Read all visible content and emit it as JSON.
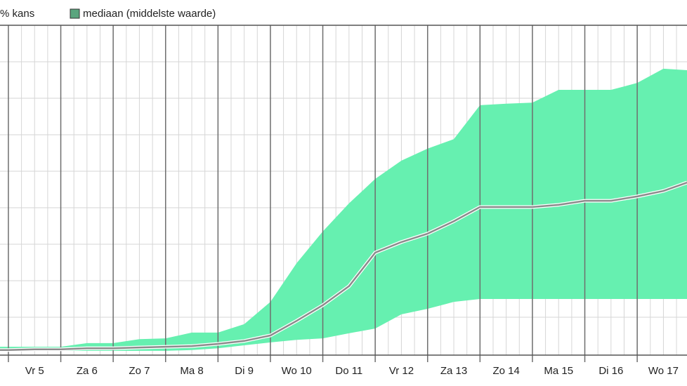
{
  "chart_data": {
    "type": "area",
    "x": [
      4.84,
      5,
      5.5,
      6,
      6.5,
      7,
      7.5,
      8,
      8.5,
      9,
      9.5,
      10,
      10.5,
      11,
      11.5,
      12,
      12.5,
      13,
      13.5,
      14,
      14.5,
      15,
      15.5,
      16,
      16.5,
      17,
      17.5,
      17.95
    ],
    "categories": [
      "Vr 5",
      "Za 6",
      "Zo 7",
      "Ma 8",
      "Di 9",
      "Wo 10",
      "Do 11",
      "Vr 12",
      "Za 13",
      "Zo 14",
      "Ma 15",
      "Di 16",
      "Wo 17"
    ],
    "xlim": [
      4.84,
      17.95
    ],
    "xticks": [
      5,
      6,
      7,
      8,
      9,
      10,
      11,
      12,
      13,
      14,
      15,
      16,
      17
    ],
    "ylim": [
      0,
      9
    ],
    "yticks": [
      1,
      2,
      3,
      4,
      5,
      6,
      7,
      8
    ],
    "grid": true,
    "series": [
      {
        "name": "% kans",
        "color": "#66f0b0",
        "upper": [
          0.19,
          0.19,
          0.19,
          0.19,
          0.29,
          0.29,
          0.4,
          0.42,
          0.58,
          0.58,
          0.81,
          1.42,
          2.48,
          3.35,
          4.12,
          4.79,
          5.29,
          5.62,
          5.88,
          6.81,
          6.85,
          6.88,
          7.23,
          7.23,
          7.23,
          7.42,
          7.81,
          7.77
        ],
        "lower": [
          0.08,
          0.08,
          0.08,
          0.08,
          0.08,
          0.08,
          0.08,
          0.08,
          0.1,
          0.15,
          0.23,
          0.31,
          0.38,
          0.42,
          0.56,
          0.69,
          1.08,
          1.23,
          1.42,
          1.5,
          1.5,
          1.5,
          1.5,
          1.5,
          1.5,
          1.5,
          1.5,
          1.5
        ]
      },
      {
        "name": "mediaan (middelste waarde)",
        "color": "#8c8c8c",
        "legend_color": "#5aa57e",
        "values": [
          0.1,
          0.1,
          0.12,
          0.12,
          0.15,
          0.15,
          0.17,
          0.19,
          0.21,
          0.27,
          0.35,
          0.5,
          0.9,
          1.33,
          1.85,
          2.77,
          3.06,
          3.29,
          3.63,
          4.02,
          4.02,
          4.02,
          4.08,
          4.19,
          4.19,
          4.31,
          4.46,
          4.69
        ]
      }
    ]
  }
}
